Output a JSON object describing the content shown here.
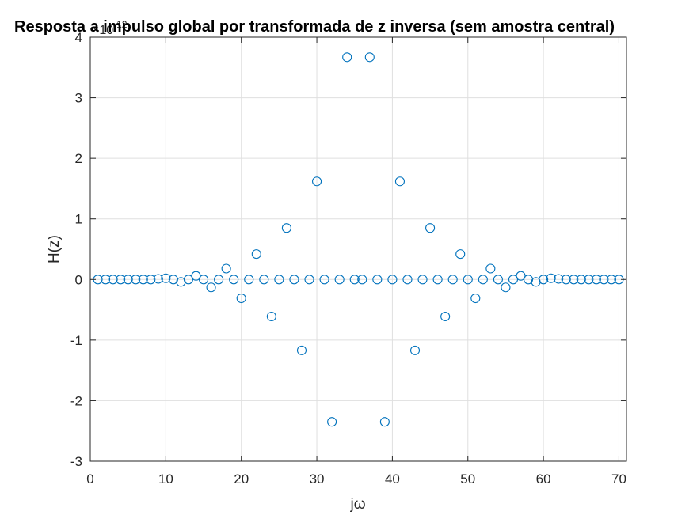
{
  "chart_data": {
    "type": "scatter",
    "title": "Resposta a impulso global por transformada de z inversa (sem amostra central)",
    "xlabel": "jω",
    "ylabel": "H(z)",
    "y_exponent_label": "×10",
    "y_exponent": "-12",
    "xlim": [
      0,
      71
    ],
    "ylim": [
      -3,
      4
    ],
    "xticks": [
      0,
      10,
      20,
      30,
      40,
      50,
      60,
      70
    ],
    "yticks": [
      -3,
      -2,
      -1,
      0,
      1,
      2,
      3,
      4
    ],
    "grid": true,
    "marker": "open-circle",
    "color": "#0072BD",
    "series": [
      {
        "x": [
          1,
          2,
          3,
          4,
          5,
          6,
          7,
          8,
          9,
          10,
          11,
          12,
          13,
          14,
          15,
          16,
          17,
          18,
          19,
          20,
          21,
          22,
          23,
          24,
          25,
          26,
          27,
          28,
          29,
          30,
          31,
          32,
          33,
          34,
          35,
          36,
          37,
          38,
          39,
          40,
          41,
          42,
          43,
          44,
          45,
          46,
          47,
          48,
          49,
          50,
          51,
          52,
          53,
          54,
          55,
          56,
          57,
          58,
          59,
          60,
          61,
          62,
          63,
          64,
          65,
          66,
          67,
          68,
          69,
          70
        ],
        "y": [
          0,
          0,
          0,
          0,
          0,
          0,
          0,
          0,
          0.01,
          0.02,
          0,
          -0.04,
          0,
          0.06,
          0,
          -0.13,
          0,
          0.18,
          0,
          -0.31,
          0,
          0.42,
          0,
          -0.61,
          0,
          0.85,
          0,
          -1.17,
          0,
          1.62,
          0,
          -2.35,
          0,
          3.67,
          0,
          0,
          3.67,
          0,
          -2.35,
          0,
          1.62,
          0,
          -1.17,
          0,
          0.85,
          0,
          -0.61,
          0,
          0.42,
          0,
          -0.31,
          0,
          0.18,
          0,
          -0.13,
          0,
          0.06,
          0,
          -0.04,
          0,
          0.02,
          0.01,
          0,
          0,
          0,
          0,
          0,
          0,
          0,
          0
        ]
      }
    ]
  }
}
